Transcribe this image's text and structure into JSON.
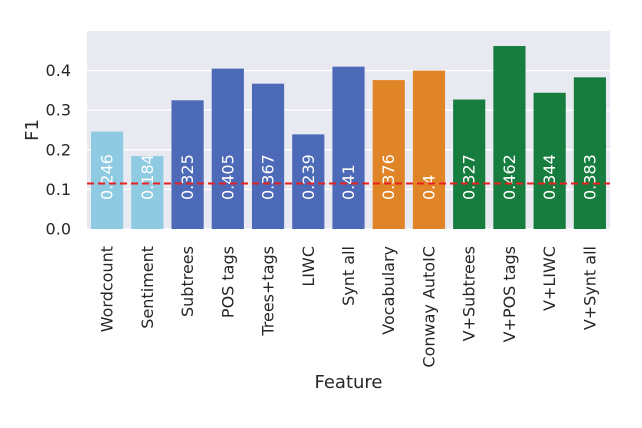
{
  "chart_data": {
    "type": "bar",
    "title": "",
    "xlabel": "Feature",
    "ylabel": "F1",
    "ylim": [
      0,
      0.5
    ],
    "yticks": [
      "0.0",
      "0.1",
      "0.2",
      "0.3",
      "0.4"
    ],
    "grid": true,
    "categories": [
      "Wordcount",
      "Sentiment",
      "Subtrees",
      "POS tags",
      "Trees+tags",
      "LIWC",
      "Synt all",
      "Vocabulary",
      "Conway AutoIC",
      "V+Subtrees",
      "V+POS tags",
      "V+LIWC",
      "V+Synt all"
    ],
    "values": [
      0.246,
      0.184,
      0.325,
      0.405,
      0.367,
      0.239,
      0.41,
      0.376,
      0.4,
      0.327,
      0.462,
      0.344,
      0.383
    ],
    "value_labels": [
      "0.246",
      "0.184",
      "0.325",
      "0.405",
      "0.367",
      "0.239",
      "0.41",
      "0.376",
      "0.4",
      "0.327",
      "0.462",
      "0.344",
      "0.383"
    ],
    "bar_colors": [
      "#8ecae2",
      "#8ecae2",
      "#4c6ab8",
      "#4c6ab8",
      "#4c6ab8",
      "#4c6ab8",
      "#4c6ab8",
      "#df8527",
      "#df8527",
      "#177d3f",
      "#177d3f",
      "#177d3f",
      "#177d3f"
    ],
    "baseline": 0.115,
    "baseline_color": "#e8201f",
    "plot_background": "#e9eaf1"
  }
}
